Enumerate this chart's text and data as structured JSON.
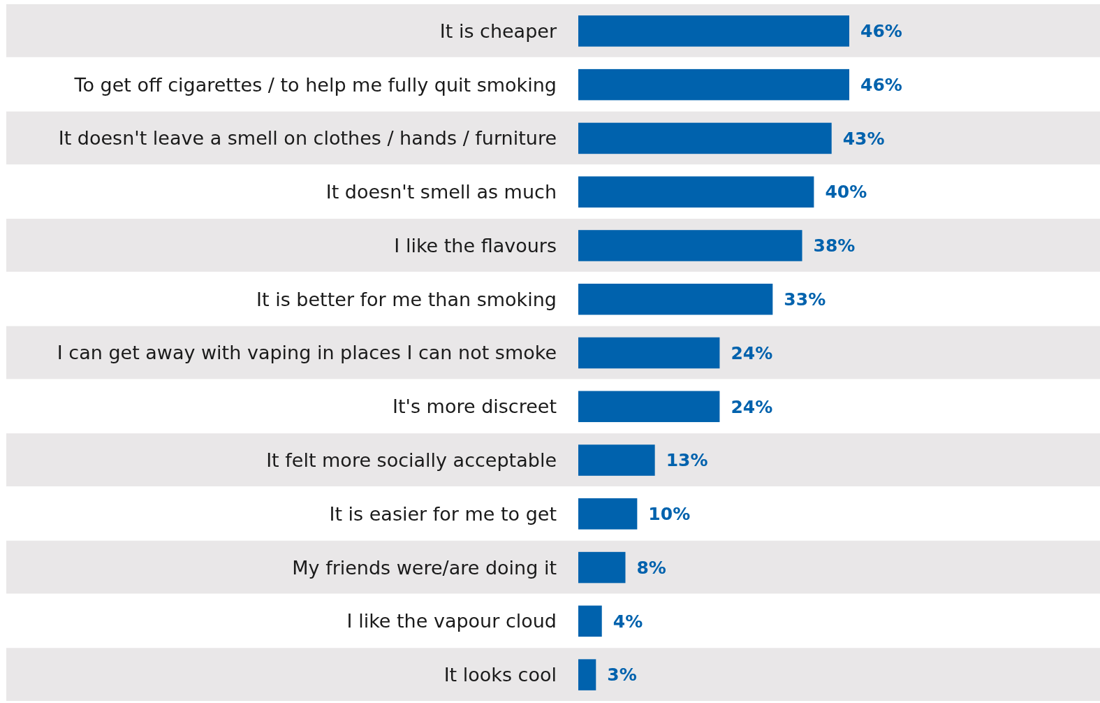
{
  "chart_data": {
    "type": "bar",
    "orientation": "horizontal",
    "color": "#0062ad",
    "categories": [
      "It is cheaper",
      "To get off cigarettes / to help me fully quit smoking",
      "It doesn't leave a smell on clothes / hands / furniture",
      "It doesn't smell as much",
      "I like the flavours",
      "It is better for me than smoking",
      "I can get away with vaping in places I can not smoke",
      "It's more discreet",
      "It felt more socially acceptable",
      "It is easier for me to get",
      "My friends were/are doing it",
      "I like the vapour cloud",
      "It looks cool"
    ],
    "values": [
      46,
      46,
      43,
      40,
      38,
      33,
      24,
      24,
      13,
      10,
      8,
      4,
      3
    ],
    "value_labels": [
      "46%",
      "46%",
      "43%",
      "40%",
      "38%",
      "33%",
      "24%",
      "24%",
      "13%",
      "10%",
      "8%",
      "4%",
      "3%"
    ]
  }
}
